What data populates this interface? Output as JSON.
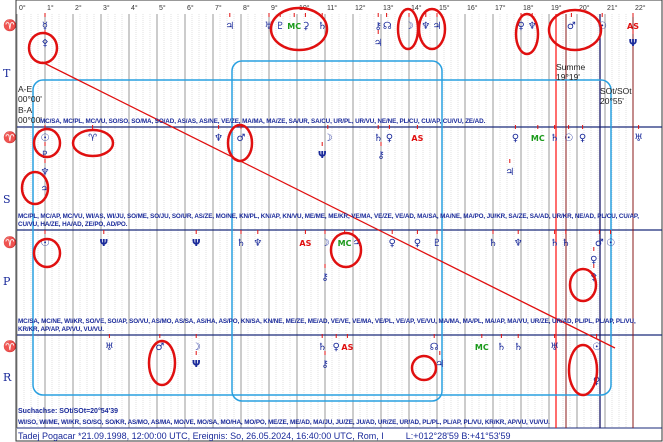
{
  "degree_axis": {
    "ticks": [
      "0°",
      "1°",
      "2°",
      "3°",
      "4°",
      "5°",
      "6°",
      "7°",
      "8°",
      "9°",
      "10°",
      "11°",
      "12°",
      "13°",
      "14°",
      "15°",
      "16°",
      "17°",
      "18°",
      "19°",
      "20°",
      "21°",
      "22°"
    ]
  },
  "colors": {
    "planet": "#1a2a9a",
    "mc": "#1a9a1a",
    "as": "#e01010",
    "highlight": "#e01010",
    "frame": "#29a0e0",
    "separator": "#1a2a7a"
  },
  "rows": [
    {
      "label": "T",
      "sign": "♈",
      "glyphs": [
        {
          "s": "☿",
          "d": 1.0
        },
        {
          "s": "♃",
          "d": 7.6
        },
        {
          "s": "♅",
          "d": 9.0
        },
        {
          "s": "♇",
          "d": 9.4
        },
        {
          "s": "MC",
          "d": 9.9
        },
        {
          "s": "⚳",
          "d": 10.3
        },
        {
          "s": "♄",
          "d": 10.9
        },
        {
          "s": "⚷",
          "d": 12.9
        },
        {
          "s": "☊",
          "d": 13.2
        },
        {
          "s": "☽",
          "d": 14.0
        },
        {
          "s": "♆",
          "d": 14.6
        },
        {
          "s": "♃",
          "d": 15.0
        },
        {
          "s": "♀",
          "d": 18.0
        },
        {
          "s": "♆",
          "d": 18.4
        },
        {
          "s": "♂",
          "d": 19.8
        },
        {
          "s": "☉",
          "d": 20.9
        },
        {
          "s": "AS",
          "d": 22.0
        }
      ],
      "glyphs2": [
        {
          "s": "⚴",
          "d": 1.0,
          "l": 1
        },
        {
          "s": "♃",
          "d": 12.9,
          "l": 1
        },
        {
          "s": "Ψ",
          "d": 22.0,
          "l": 1
        }
      ],
      "midpoints": "MC/SA, MC/PL, MC/VU, SO/SO, SO/MA, SO/AD, AS/AS, AS/NE, VE/ZE, MA/MA, MA/ZE, SA/UR, SA/CU, UR/PL, UR/VU, NE/NE, PL/CU, CU/AP, CU/VU, ZE/AD."
    },
    {
      "label": "S",
      "sign": "♈",
      "glyphs": [
        {
          "s": "☉",
          "d": 1.0
        },
        {
          "s": "♈",
          "d": 2.7
        },
        {
          "s": "♆",
          "d": 7.2
        },
        {
          "s": "♂",
          "d": 8.0
        },
        {
          "s": "☽",
          "d": 11.1
        },
        {
          "s": "♄",
          "d": 12.9
        },
        {
          "s": "♀",
          "d": 13.3
        },
        {
          "s": "AS",
          "d": 14.3
        },
        {
          "s": "♀",
          "d": 17.8
        },
        {
          "s": "MC",
          "d": 18.6
        },
        {
          "s": "♄",
          "d": 19.2
        },
        {
          "s": "☉",
          "d": 19.7
        },
        {
          "s": "♀",
          "d": 20.2
        },
        {
          "s": "♅",
          "d": 22.2
        }
      ],
      "glyphs2": [
        {
          "s": "♇",
          "d": 1.0,
          "l": 1
        },
        {
          "s": "Ψ",
          "d": 10.9,
          "l": 1
        },
        {
          "s": "⚷",
          "d": 13.0,
          "l": 1
        },
        {
          "s": "♃",
          "d": 17.6,
          "l": 2
        },
        {
          "s": "♆",
          "d": 1.0,
          "l": 2
        },
        {
          "s": "♃",
          "d": 1.0,
          "l": 3
        }
      ],
      "midpoints": "MC/PL, MC/AP, MC/VU, WI/AS, WI/JU, SO/ME, SO/JU, SO/UR, AS/ZE, MO/NE, KN/PL, KN/AP, KN/VU, ME/ME, ME/KR, VE/MA, VE/ZE, VE/AD, MA/SA, MA/NE, MA/PO, JU/KR, SA/ZE, SA/AD, UR/KR, NE/AD, PL/CU, CU/AP, CU/VU, HA/ZE, HA/AD, ZE/PO, AD/PO."
    },
    {
      "label": "P",
      "sign": "♈",
      "glyphs": [
        {
          "s": "☉",
          "d": 1.0
        },
        {
          "s": "Ψ",
          "d": 3.1
        },
        {
          "s": "Ψ",
          "d": 6.4
        },
        {
          "s": "♄",
          "d": 8.0
        },
        {
          "s": "♆",
          "d": 8.6
        },
        {
          "s": "AS",
          "d": 10.3
        },
        {
          "s": "☽",
          "d": 11.0
        },
        {
          "s": "MC",
          "d": 11.7
        },
        {
          "s": "♃",
          "d": 12.0
        },
        {
          "s": "♀",
          "d": 13.4
        },
        {
          "s": "♀",
          "d": 14.3
        },
        {
          "s": "♇",
          "d": 15.0
        },
        {
          "s": "♄",
          "d": 17.0
        },
        {
          "s": "♆",
          "d": 17.9
        },
        {
          "s": "♄",
          "d": 19.2
        },
        {
          "s": "♄",
          "d": 19.6
        },
        {
          "s": "♂",
          "d": 20.8
        },
        {
          "s": "☉",
          "d": 21.2
        }
      ],
      "glyphs2": [
        {
          "s": "⚷",
          "d": 11.0,
          "l": 2
        },
        {
          "s": "♀",
          "d": 20.6,
          "l": 1
        },
        {
          "s": "⚴",
          "d": 20.6,
          "l": 2
        }
      ],
      "midpoints": "MC/SA, MC/NE, WI/KR, SO/VE, SO/AP, SO/VU, AS/MO, AS/SA, AS/HA, AS/PO, KN/SA, KN/NE, ME/ZE, ME/AD, VE/VE, VE/MA, VE/PL, VE/AP, VE/VU, MA/MA, MA/PL, MA/AP, MA/VU, UR/ZE, UR/AD, PL/PL, PL/AP, PL/VU, KR/KR, AP/AP, AP/VU, VU/VU."
    },
    {
      "label": "R",
      "sign": "♈",
      "glyphs": [
        {
          "s": "♅",
          "d": 3.3
        },
        {
          "s": "♂",
          "d": 5.1
        },
        {
          "s": "☽",
          "d": 6.4
        },
        {
          "s": "♄",
          "d": 10.9
        },
        {
          "s": "♀",
          "d": 11.4
        },
        {
          "s": "AS",
          "d": 11.8
        },
        {
          "s": "☊",
          "d": 14.9
        },
        {
          "s": "MC",
          "d": 16.6
        },
        {
          "s": "♄",
          "d": 17.3
        },
        {
          "s": "♄",
          "d": 17.9
        },
        {
          "s": "♅",
          "d": 19.2
        },
        {
          "s": "☉",
          "d": 20.7
        }
      ],
      "glyphs2": [
        {
          "s": "Ψ",
          "d": 6.4,
          "l": 1
        },
        {
          "s": "⚷",
          "d": 11.0,
          "l": 1
        },
        {
          "s": "♃",
          "d": 15.1,
          "l": 1
        },
        {
          "s": "♀",
          "d": 20.7,
          "l": 2
        }
      ],
      "midpoints": "WI/SO, WI/ME, WI/KR, SO/SO, SO/KR, AS/MO, AS/MA, MO/VE, MO/SA, MO/HA, MO/PO, ME/ZE, ME/AD, MA/JU, JU/ZE, JU/AD, UR/ZE, UR/AD, PL/PL, PL/AP, PL/VU, KR/KR, AP/VU, VU/VU."
    }
  ],
  "annotations": {
    "ae_label": "A-E",
    "ae_value": "00°00'",
    "ba_label": "B-A",
    "ba_value": "00°00'",
    "summe_label": "Summe",
    "summe_value": "19°19'",
    "sot_label": "SOt/SOt",
    "sot_value": "20°55'",
    "suchachse": "Suchachse: SOt/SOt=20°54'39"
  },
  "footer": {
    "text": "Tadej Pogacar  *21.09.1998, 12:00:00 UTC, Ereignis: So, 26.05.2024, 16:40:00 UTC, Rom, I",
    "coords": "L:+012°28'59 B:+41°53'59"
  }
}
